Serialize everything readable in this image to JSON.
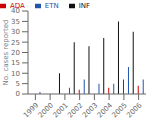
{
  "chart_data": {
    "type": "bar",
    "categories": [
      "1999",
      "2000",
      "2001",
      "2002",
      "2003",
      "2004",
      "2005",
      "2006"
    ],
    "series": [
      {
        "name": "INF",
        "color": "#111111",
        "values": [
          0,
          0,
          10,
          25,
          23,
          27,
          35,
          30
        ]
      },
      {
        "name": "ADA",
        "color": "#cc0000",
        "values": [
          0,
          0,
          0,
          2,
          0,
          3,
          7,
          4
        ]
      },
      {
        "name": "ETN",
        "color": "#2255aa",
        "values": [
          1,
          0,
          3,
          7,
          5,
          5,
          13,
          7
        ]
      }
    ],
    "ylabel": "No. cases reported",
    "ylim": [
      0,
      40
    ],
    "yticks": [
      0,
      5,
      10,
      15,
      20,
      25,
      30,
      35,
      40
    ],
    "legend": "upper left",
    "grid": false
  }
}
